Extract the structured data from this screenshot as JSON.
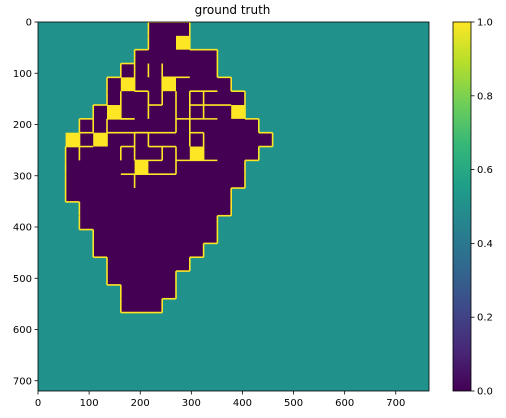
{
  "chart_data": {
    "type": "heatmap",
    "title": "ground truth",
    "xlabel": "",
    "ylabel": "",
    "x_ticks": [
      "0",
      "100",
      "200",
      "300",
      "400",
      "500",
      "600",
      "700"
    ],
    "y_ticks": [
      "0",
      "100",
      "200",
      "300",
      "400",
      "500",
      "600",
      "700"
    ],
    "xlim": [
      0,
      765
    ],
    "ylim": [
      720,
      0
    ],
    "colorbar": {
      "ticks": [
        "0.0",
        "0.2",
        "0.4",
        "0.6",
        "0.8",
        "1.0"
      ],
      "range": [
        0,
        1
      ],
      "colormap": "viridis"
    },
    "colors": {
      "background_value_0.5": "#21918c",
      "wall_value_0": "#440154",
      "boundary_value_1": "#fde725"
    },
    "cell_size": 27,
    "grid_cols": 28,
    "grid_rows": 27,
    "background_value": 0.5,
    "maze_value": 0.0,
    "boundary_value": 1.0,
    "rows": [
      {
        "row": 0,
        "spans": [
          [
            8,
            9,
            10
          ]
        ]
      },
      {
        "row": 1,
        "spans": [
          [
            8,
            9,
            10
          ]
        ]
      },
      {
        "row": 2,
        "spans": [
          [
            7,
            10,
            12
          ]
        ]
      },
      {
        "row": 3,
        "spans": [
          [
            6,
            11,
            12
          ]
        ]
      },
      {
        "row": 4,
        "spans": [
          [
            5,
            12,
            13
          ]
        ]
      },
      {
        "row": 5,
        "spans": [
          [
            5,
            13,
            14
          ]
        ]
      },
      {
        "row": 6,
        "spans": [
          [
            4,
            13,
            14
          ]
        ]
      },
      {
        "row": 7,
        "spans": [
          [
            3,
            14,
            15
          ]
        ]
      },
      {
        "row": 8,
        "spans": [
          [
            3,
            14,
            16
          ]
        ]
      },
      {
        "row": 9,
        "spans": [
          [
            2,
            14,
            15
          ]
        ]
      },
      {
        "row": 10,
        "spans": [
          [
            2,
            14,
            14
          ]
        ]
      },
      {
        "row": 11,
        "spans": [
          [
            2,
            13,
            14
          ]
        ]
      },
      {
        "row": 12,
        "spans": [
          [
            2,
            12,
            13
          ]
        ]
      },
      {
        "row": 13,
        "spans": [
          [
            3,
            12,
            13
          ]
        ]
      },
      {
        "row": 14,
        "spans": [
          [
            3,
            12,
            12
          ]
        ]
      },
      {
        "row": 15,
        "spans": [
          [
            4,
            11,
            12
          ]
        ]
      },
      {
        "row": 16,
        "spans": [
          [
            4,
            10,
            11
          ]
        ]
      },
      {
        "row": 17,
        "spans": [
          [
            5,
            9,
            10
          ]
        ]
      },
      {
        "row": 18,
        "spans": [
          [
            5,
            9,
            9
          ]
        ]
      },
      {
        "row": 19,
        "spans": [
          [
            6,
            8,
            9
          ]
        ]
      },
      {
        "row": 20,
        "spans": [
          [
            6,
            8,
            8
          ]
        ]
      }
    ],
    "yellow_blocks": [
      [
        10,
        1
      ],
      [
        6,
        4
      ],
      [
        9,
        4
      ],
      [
        14,
        6
      ],
      [
        5,
        6
      ],
      [
        2,
        8
      ],
      [
        4,
        8
      ],
      [
        11,
        9
      ],
      [
        7,
        10
      ]
    ],
    "inner_walls": [
      {
        "orient": "v",
        "x": 7,
        "y0": 3,
        "y1": 5
      },
      {
        "orient": "v",
        "x": 8,
        "y0": 3,
        "y1": 4
      },
      {
        "orient": "h",
        "x0": 7,
        "x1": 8,
        "y": 5
      },
      {
        "orient": "v",
        "x": 9,
        "y0": 3,
        "y1": 6
      },
      {
        "orient": "h",
        "x0": 9,
        "x1": 11,
        "y": 4
      },
      {
        "orient": "v",
        "x": 10,
        "y0": 5,
        "y1": 8
      },
      {
        "orient": "h",
        "x0": 10,
        "x1": 11,
        "y": 7
      },
      {
        "orient": "v",
        "x": 11,
        "y0": 5,
        "y1": 8
      },
      {
        "orient": "h",
        "x0": 11,
        "x1": 13,
        "y": 5
      },
      {
        "orient": "v",
        "x": 12,
        "y0": 5,
        "y1": 6
      },
      {
        "orient": "h",
        "x0": 11,
        "x1": 14,
        "y": 6
      },
      {
        "orient": "v",
        "x": 12,
        "y0": 6,
        "y1": 7
      },
      {
        "orient": "h",
        "x0": 11,
        "x1": 13,
        "y": 7
      },
      {
        "orient": "v",
        "x": 8,
        "y0": 5,
        "y1": 7
      },
      {
        "orient": "h",
        "x0": 8,
        "x1": 9,
        "y": 6
      },
      {
        "orient": "v",
        "x": 6,
        "y0": 5,
        "y1": 7
      },
      {
        "orient": "h",
        "x0": 6,
        "x1": 7,
        "y": 7
      },
      {
        "orient": "h",
        "x0": 5,
        "x1": 7,
        "y": 7
      },
      {
        "orient": "v",
        "x": 5,
        "y0": 7,
        "y1": 9
      },
      {
        "orient": "h",
        "x0": 5,
        "x1": 8,
        "y": 8
      },
      {
        "orient": "v",
        "x": 7,
        "y0": 8,
        "y1": 10
      },
      {
        "orient": "h",
        "x0": 6,
        "x1": 7,
        "y": 9
      },
      {
        "orient": "v",
        "x": 6,
        "y0": 9,
        "y1": 10
      },
      {
        "orient": "h",
        "x0": 3,
        "x1": 4,
        "y": 8
      },
      {
        "orient": "v",
        "x": 3,
        "y0": 8,
        "y1": 10
      },
      {
        "orient": "h",
        "x0": 3,
        "x1": 4,
        "y": 9
      },
      {
        "orient": "v",
        "x": 4,
        "y0": 7,
        "y1": 8
      },
      {
        "orient": "h",
        "x0": 7,
        "x1": 10,
        "y": 8
      },
      {
        "orient": "v",
        "x": 8,
        "y0": 8,
        "y1": 9
      },
      {
        "orient": "h",
        "x0": 8,
        "x1": 10,
        "y": 9
      },
      {
        "orient": "v",
        "x": 9,
        "y0": 9,
        "y1": 10
      },
      {
        "orient": "h",
        "x0": 7,
        "x1": 9,
        "y": 10
      },
      {
        "orient": "v",
        "x": 7,
        "y0": 11,
        "y1": 12
      },
      {
        "orient": "h",
        "x0": 6,
        "x1": 10,
        "y": 11
      },
      {
        "orient": "v",
        "x": 10,
        "y0": 9,
        "y1": 11
      },
      {
        "orient": "v",
        "x": 12,
        "y0": 8,
        "y1": 10
      },
      {
        "orient": "h",
        "x0": 11,
        "x1": 12,
        "y": 8
      },
      {
        "orient": "v",
        "x": 11,
        "y0": 8,
        "y1": 9
      },
      {
        "orient": "h",
        "x0": 10,
        "x1": 13,
        "y": 10
      }
    ]
  }
}
